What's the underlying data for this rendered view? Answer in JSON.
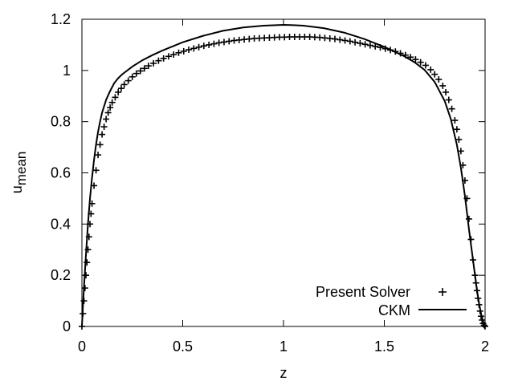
{
  "chart_data": {
    "type": "line",
    "title": "",
    "xlabel": "z",
    "ylabel": "u",
    "ylabel_sub": "mean",
    "xlim": [
      0,
      2
    ],
    "ylim": [
      0,
      1.2
    ],
    "xticks": [
      "0",
      "0.5",
      "1",
      "1.5",
      "2"
    ],
    "yticks": [
      "0",
      "0.2",
      "0.4",
      "0.6",
      "0.8",
      "1",
      "1.2"
    ],
    "grid": false,
    "legend_position": "bottom-right",
    "series": [
      {
        "name": "Present Solver",
        "style": "points-plus",
        "color": "#000000",
        "x": [
          0.0,
          0.005,
          0.01,
          0.015,
          0.02,
          0.025,
          0.03,
          0.035,
          0.04,
          0.045,
          0.05,
          0.06,
          0.07,
          0.08,
          0.09,
          0.1,
          0.11,
          0.12,
          0.13,
          0.14,
          0.15,
          0.165,
          0.18,
          0.195,
          0.21,
          0.23,
          0.25,
          0.27,
          0.29,
          0.31,
          0.33,
          0.355,
          0.38,
          0.405,
          0.43,
          0.455,
          0.48,
          0.505,
          0.53,
          0.555,
          0.58,
          0.605,
          0.63,
          0.655,
          0.68,
          0.705,
          0.73,
          0.755,
          0.78,
          0.805,
          0.83,
          0.855,
          0.88,
          0.905,
          0.93,
          0.955,
          0.98,
          1.005,
          1.03,
          1.055,
          1.08,
          1.105,
          1.13,
          1.155,
          1.18,
          1.205,
          1.23,
          1.255,
          1.28,
          1.305,
          1.33,
          1.355,
          1.38,
          1.405,
          1.43,
          1.455,
          1.48,
          1.505,
          1.53,
          1.555,
          1.58,
          1.605,
          1.63,
          1.655,
          1.68,
          1.705,
          1.73,
          1.75,
          1.77,
          1.79,
          1.805,
          1.82,
          1.835,
          1.85,
          1.86,
          1.87,
          1.88,
          1.89,
          1.9,
          1.91,
          1.92,
          1.93,
          1.94,
          1.95,
          1.955,
          1.96,
          1.965,
          1.97,
          1.975,
          1.98,
          1.985,
          1.99,
          1.995,
          2.0
        ],
        "y": [
          0.0,
          0.05,
          0.1,
          0.15,
          0.2,
          0.25,
          0.3,
          0.35,
          0.4,
          0.44,
          0.48,
          0.55,
          0.61,
          0.67,
          0.71,
          0.75,
          0.78,
          0.81,
          0.835,
          0.855,
          0.875,
          0.895,
          0.915,
          0.93,
          0.945,
          0.96,
          0.975,
          0.988,
          0.998,
          1.008,
          1.018,
          1.028,
          1.038,
          1.047,
          1.055,
          1.062,
          1.069,
          1.075,
          1.081,
          1.086,
          1.091,
          1.096,
          1.1,
          1.104,
          1.108,
          1.111,
          1.114,
          1.117,
          1.119,
          1.121,
          1.123,
          1.125,
          1.126,
          1.127,
          1.128,
          1.129,
          1.13,
          1.13,
          1.131,
          1.131,
          1.131,
          1.131,
          1.131,
          1.13,
          1.129,
          1.127,
          1.125,
          1.123,
          1.12,
          1.117,
          1.114,
          1.11,
          1.106,
          1.102,
          1.098,
          1.094,
          1.09,
          1.085,
          1.08,
          1.074,
          1.067,
          1.06,
          1.052,
          1.043,
          1.032,
          1.02,
          1.003,
          0.985,
          0.965,
          0.94,
          0.915,
          0.885,
          0.85,
          0.805,
          0.77,
          0.73,
          0.685,
          0.63,
          0.57,
          0.5,
          0.42,
          0.34,
          0.26,
          0.2,
          0.17,
          0.14,
          0.11,
          0.085,
          0.06,
          0.04,
          0.025,
          0.012,
          0.005,
          0.0
        ]
      },
      {
        "name": "CKM",
        "style": "line",
        "color": "#000000",
        "x": [
          0.0,
          0.005,
          0.01,
          0.02,
          0.03,
          0.04,
          0.05,
          0.06,
          0.07,
          0.08,
          0.09,
          0.1,
          0.12,
          0.14,
          0.16,
          0.18,
          0.2,
          0.25,
          0.3,
          0.35,
          0.4,
          0.5,
          0.6,
          0.7,
          0.8,
          0.9,
          1.0,
          1.05,
          1.1,
          1.2,
          1.3,
          1.4,
          1.5,
          1.6,
          1.65,
          1.7,
          1.75,
          1.8,
          1.83,
          1.86,
          1.88,
          1.9,
          1.92,
          1.94,
          1.96,
          1.97,
          1.98,
          1.99,
          1.995,
          2.0
        ],
        "y": [
          0.0,
          0.08,
          0.15,
          0.28,
          0.4,
          0.5,
          0.58,
          0.65,
          0.71,
          0.76,
          0.8,
          0.835,
          0.885,
          0.92,
          0.95,
          0.97,
          0.985,
          1.015,
          1.04,
          1.06,
          1.078,
          1.11,
          1.135,
          1.155,
          1.168,
          1.175,
          1.178,
          1.177,
          1.175,
          1.165,
          1.148,
          1.123,
          1.092,
          1.055,
          1.032,
          1.002,
          0.955,
          0.88,
          0.81,
          0.71,
          0.62,
          0.51,
          0.38,
          0.26,
          0.14,
          0.09,
          0.05,
          0.02,
          0.008,
          0.0
        ]
      }
    ]
  }
}
